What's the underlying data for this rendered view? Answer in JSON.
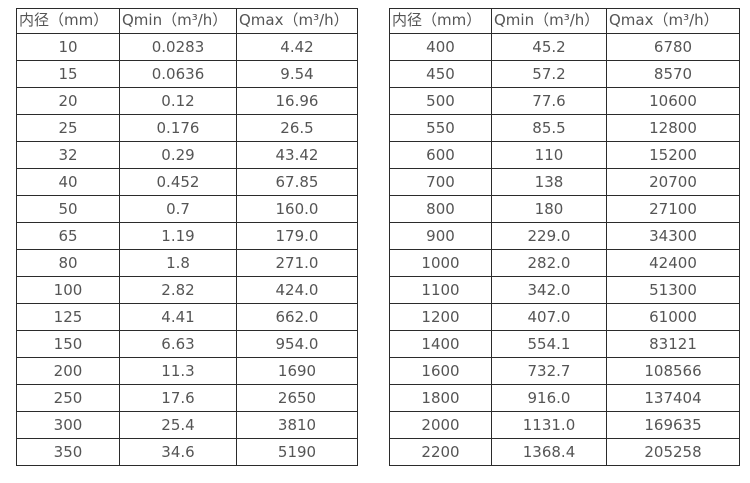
{
  "page": {
    "background_color": "#ffffff",
    "text_color": "#555555",
    "border_color": "#2b2b2b"
  },
  "tables": [
    {
      "name": "flow-table-small-diameters",
      "headers": [
        "内径（mm）",
        "Qmin（m³/h）",
        "Qmax（m³/h）"
      ],
      "rows": [
        [
          "10",
          "0.0283",
          "4.42"
        ],
        [
          "15",
          "0.0636",
          "9.54"
        ],
        [
          "20",
          "0.12",
          "16.96"
        ],
        [
          "25",
          "0.176",
          "26.5"
        ],
        [
          "32",
          "0.29",
          "43.42"
        ],
        [
          "40",
          "0.452",
          "67.85"
        ],
        [
          "50",
          "0.7",
          "160.0"
        ],
        [
          "65",
          "1.19",
          "179.0"
        ],
        [
          "80",
          "1.8",
          "271.0"
        ],
        [
          "100",
          "2.82",
          "424.0"
        ],
        [
          "125",
          "4.41",
          "662.0"
        ],
        [
          "150",
          "6.63",
          "954.0"
        ],
        [
          "200",
          "11.3",
          "1690"
        ],
        [
          "250",
          "17.6",
          "2650"
        ],
        [
          "300",
          "25.4",
          "3810"
        ],
        [
          "350",
          "34.6",
          "5190"
        ]
      ]
    },
    {
      "name": "flow-table-large-diameters",
      "headers": [
        "内径（mm）",
        "Qmin（m³/h）",
        "Qmax（m³/h）"
      ],
      "rows": [
        [
          "400",
          "45.2",
          "6780"
        ],
        [
          "450",
          "57.2",
          "8570"
        ],
        [
          "500",
          "77.6",
          "10600"
        ],
        [
          "550",
          "85.5",
          "12800"
        ],
        [
          "600",
          "110",
          "15200"
        ],
        [
          "700",
          "138",
          "20700"
        ],
        [
          "800",
          "180",
          "27100"
        ],
        [
          "900",
          "229.0",
          "34300"
        ],
        [
          "1000",
          "282.0",
          "42400"
        ],
        [
          "1100",
          "342.0",
          "51300"
        ],
        [
          "1200",
          "407.0",
          "61000"
        ],
        [
          "1400",
          "554.1",
          "83121"
        ],
        [
          "1600",
          "732.7",
          "108566"
        ],
        [
          "1800",
          "916.0",
          "137404"
        ],
        [
          "2000",
          "1131.0",
          "169635"
        ],
        [
          "2200",
          "1368.4",
          "205258"
        ]
      ]
    }
  ]
}
